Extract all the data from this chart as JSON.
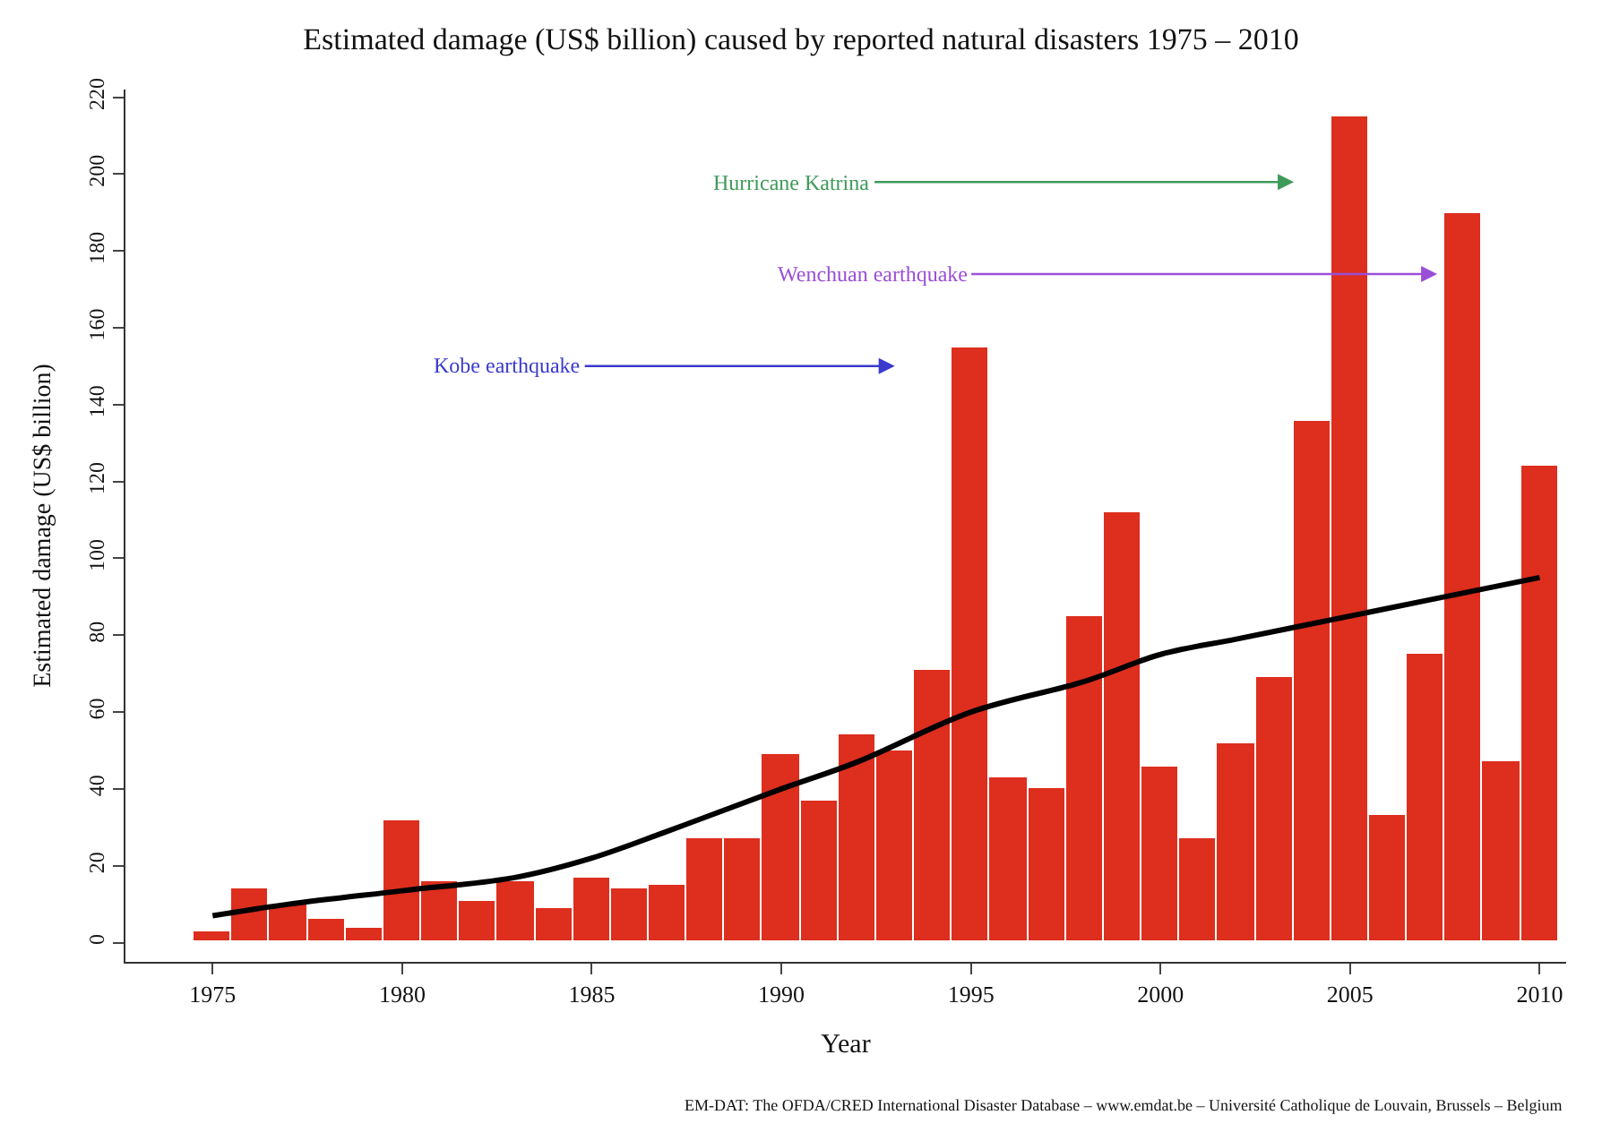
{
  "chart_data": {
    "type": "bar",
    "title": "Estimated damage (US$ billion) caused by reported natural disasters 1975 – 2010",
    "xlabel": "Year",
    "ylabel": "Estimated damage (US$ billion)",
    "x": [
      1975,
      1976,
      1977,
      1978,
      1979,
      1980,
      1981,
      1982,
      1983,
      1984,
      1985,
      1986,
      1987,
      1988,
      1989,
      1990,
      1991,
      1992,
      1993,
      1994,
      1995,
      1996,
      1997,
      1998,
      1999,
      2000,
      2001,
      2002,
      2003,
      2004,
      2005,
      2006,
      2007,
      2008,
      2009,
      2010
    ],
    "series": [
      {
        "color": "#dd2e1e",
        "values": [
          3,
          14,
          10,
          6,
          4,
          32,
          16,
          11,
          16,
          9,
          17,
          14,
          15,
          27,
          27,
          49,
          37,
          54,
          50,
          71,
          155,
          43,
          40,
          85,
          112,
          46,
          27,
          52,
          69,
          136,
          215,
          33,
          75,
          190,
          47,
          124
        ]
      },
      {
        "type": "line",
        "color": "#000000",
        "x": [
          1975,
          1977,
          1980,
          1983,
          1985,
          1987,
          1990,
          1992,
          1995,
          1998,
          2000,
          2002,
          2005,
          2007,
          2010
        ],
        "values": [
          7,
          10,
          13.5,
          17,
          22,
          29,
          40,
          47,
          60,
          68,
          75,
          79,
          85,
          89,
          95
        ]
      }
    ],
    "xlim": [
      1972.7,
      2010.7
    ],
    "xticks": [
      1975,
      1980,
      1985,
      1990,
      1995,
      2000,
      2005,
      2010
    ],
    "ylim": [
      -5,
      222
    ],
    "yticks": [
      0,
      20,
      40,
      60,
      80,
      100,
      120,
      140,
      160,
      180,
      200,
      220
    ],
    "annotations": [
      "Kobe earthquake",
      {
        "text": "Wenchuan earthquake",
        "x": 2007.3,
        "y": 174
      },
      "Hurricane Katrina",
      "EM-DAT: The OFDA/CRED International Disaster Database – www.emdat.be – Université Catholique de Louvain, Brussels – Belgium"
    ]
  }
}
